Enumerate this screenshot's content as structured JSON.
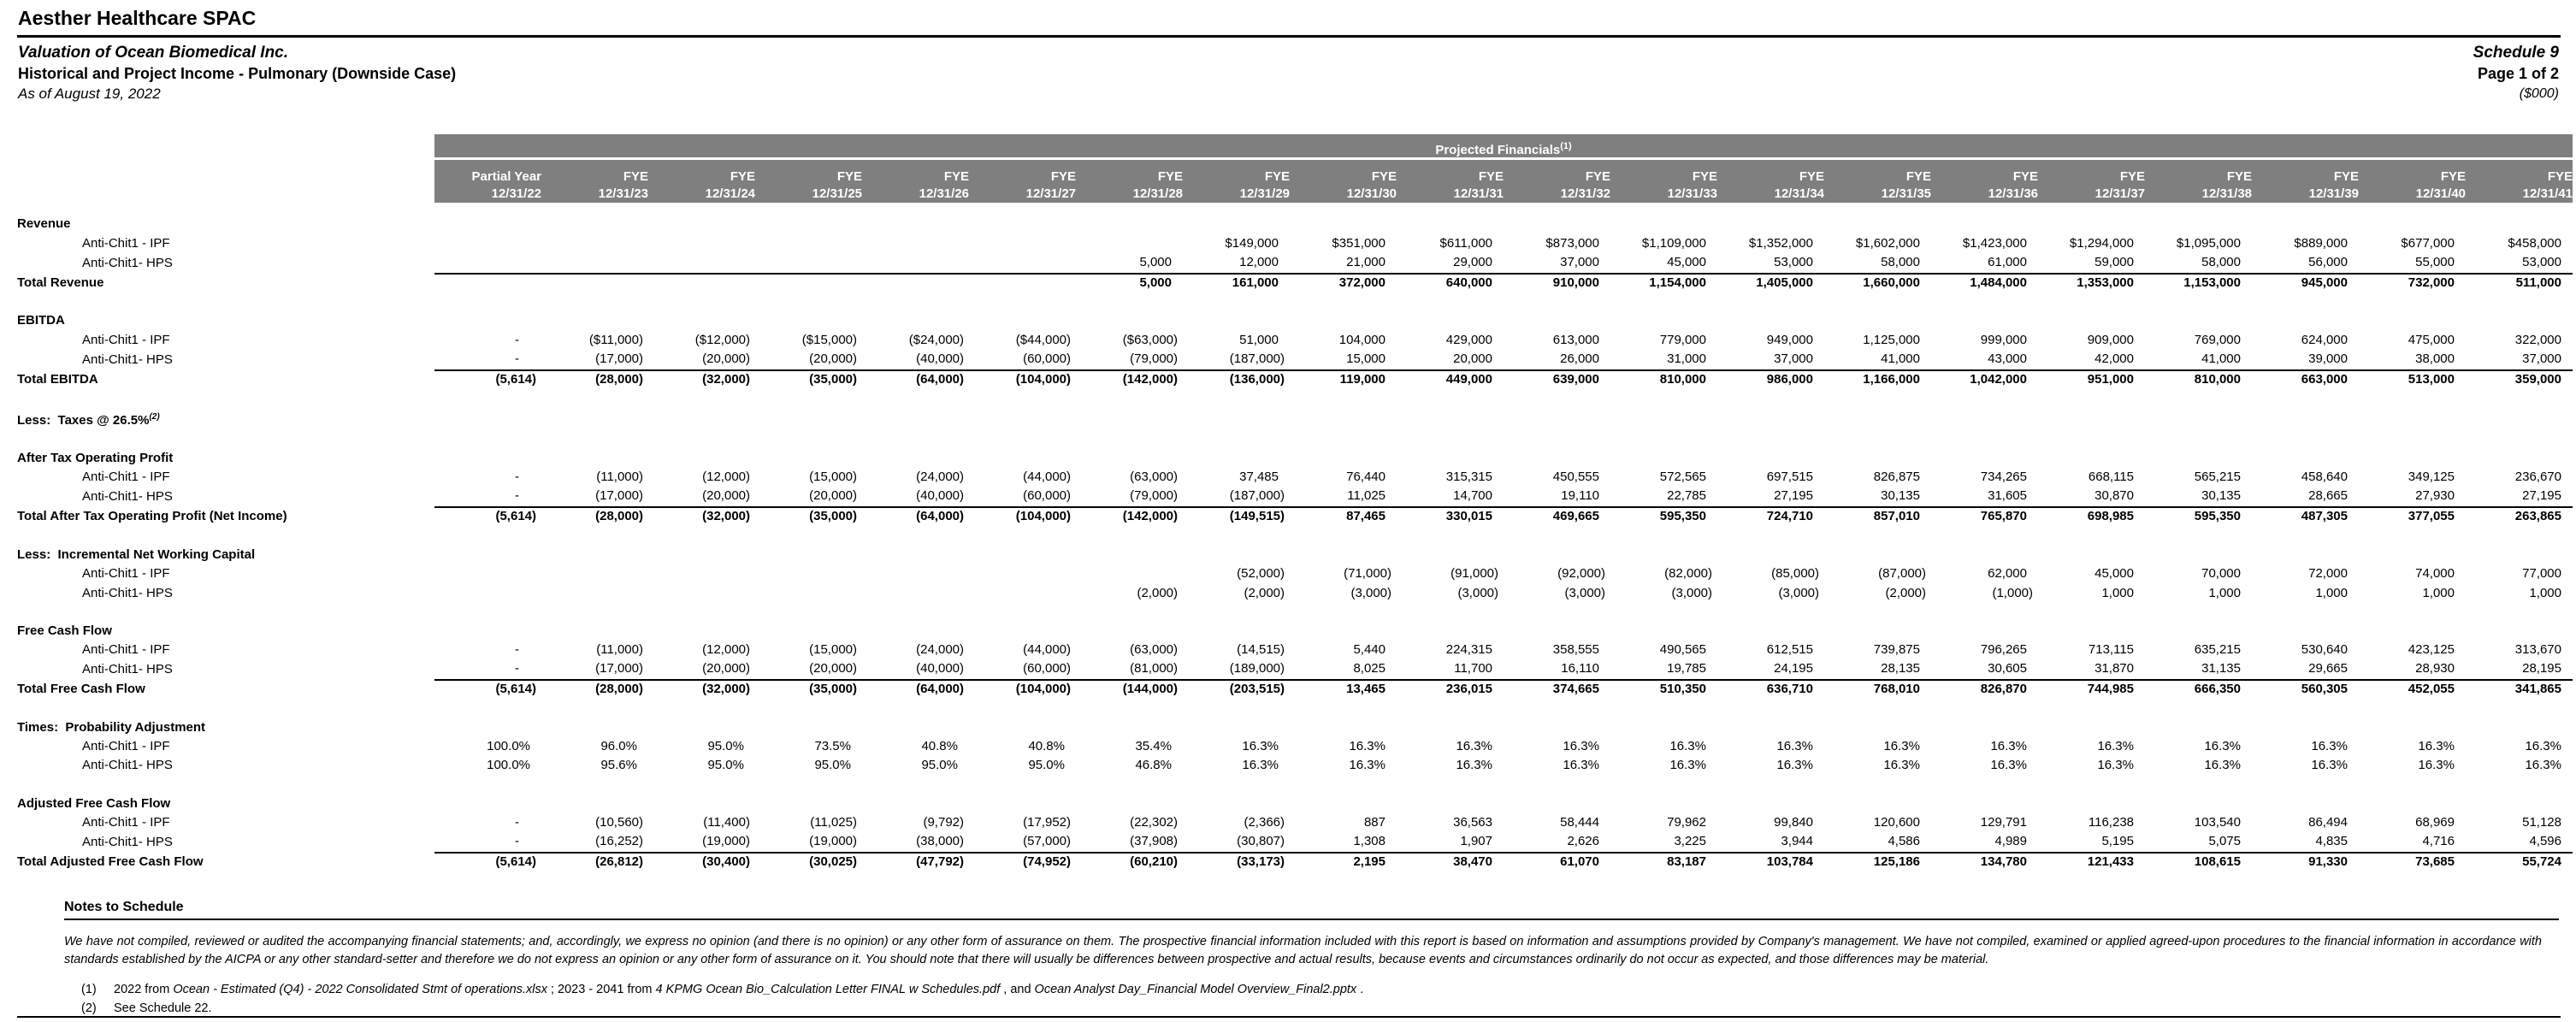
{
  "meta": {
    "company": "Aesther Healthcare SPAC",
    "subtitle1": "Valuation of Ocean Biomedical Inc.",
    "subtitle2": "Historical and Project Income - Pulmonary (Downside Case)",
    "as_of": "As of August 19, 2022",
    "schedule": "Schedule 9",
    "page": "Page 1 of 2",
    "units": "($000)"
  },
  "table": {
    "band_title": "Projected Financials",
    "band_sup": "(1)",
    "columns": [
      {
        "period": "Partial Year",
        "date": "12/31/22"
      },
      {
        "period": "FYE",
        "date": "12/31/23"
      },
      {
        "period": "FYE",
        "date": "12/31/24"
      },
      {
        "period": "FYE",
        "date": "12/31/25"
      },
      {
        "period": "FYE",
        "date": "12/31/26"
      },
      {
        "period": "FYE",
        "date": "12/31/27"
      },
      {
        "period": "FYE",
        "date": "12/31/28"
      },
      {
        "period": "FYE",
        "date": "12/31/29"
      },
      {
        "period": "FYE",
        "date": "12/31/30"
      },
      {
        "period": "FYE",
        "date": "12/31/31"
      },
      {
        "period": "FYE",
        "date": "12/31/32"
      },
      {
        "period": "FYE",
        "date": "12/31/33"
      },
      {
        "period": "FYE",
        "date": "12/31/34"
      },
      {
        "period": "FYE",
        "date": "12/31/35"
      },
      {
        "period": "FYE",
        "date": "12/31/36"
      },
      {
        "period": "FYE",
        "date": "12/31/37"
      },
      {
        "period": "FYE",
        "date": "12/31/38"
      },
      {
        "period": "FYE",
        "date": "12/31/39"
      },
      {
        "period": "FYE",
        "date": "12/31/40"
      },
      {
        "period": "FYE",
        "date": "12/31/41"
      }
    ],
    "rows": [
      {
        "type": "section",
        "label": "Revenue"
      },
      {
        "type": "item",
        "label": "Anti-Chit1 - IPF",
        "values": [
          "",
          "",
          "",
          "",
          "",
          "",
          "",
          "$149,000",
          "$351,000",
          "$611,000",
          "$873,000",
          "$1,109,000",
          "$1,352,000",
          "$1,602,000",
          "$1,423,000",
          "$1,294,000",
          "$1,095,000",
          "$889,000",
          "$677,000",
          "$458,000"
        ]
      },
      {
        "type": "item",
        "rule": true,
        "label": "Anti-Chit1- HPS",
        "values": [
          "",
          "",
          "",
          "",
          "",
          "",
          "5,000",
          "12,000",
          "21,000",
          "29,000",
          "37,000",
          "45,000",
          "53,000",
          "58,000",
          "61,000",
          "59,000",
          "58,000",
          "56,000",
          "55,000",
          "53,000"
        ]
      },
      {
        "type": "total",
        "label": "Total Revenue",
        "values": [
          "",
          "",
          "",
          "",
          "",
          "",
          "5,000",
          "161,000",
          "372,000",
          "640,000",
          "910,000",
          "1,154,000",
          "1,405,000",
          "1,660,000",
          "1,484,000",
          "1,353,000",
          "1,153,000",
          "945,000",
          "732,000",
          "511,000"
        ]
      },
      {
        "type": "spacer"
      },
      {
        "type": "section",
        "label": "EBITDA"
      },
      {
        "type": "item",
        "label": "Anti-Chit1 - IPF",
        "values": [
          "-",
          "($11,000)",
          "($12,000)",
          "($15,000)",
          "($24,000)",
          "($44,000)",
          "($63,000)",
          "51,000",
          "104,000",
          "429,000",
          "613,000",
          "779,000",
          "949,000",
          "1,125,000",
          "999,000",
          "909,000",
          "769,000",
          "624,000",
          "475,000",
          "322,000"
        ]
      },
      {
        "type": "item",
        "rule": true,
        "label": "Anti-Chit1- HPS",
        "values": [
          "-",
          "(17,000)",
          "(20,000)",
          "(20,000)",
          "(40,000)",
          "(60,000)",
          "(79,000)",
          "(187,000)",
          "15,000",
          "20,000",
          "26,000",
          "31,000",
          "37,000",
          "41,000",
          "43,000",
          "42,000",
          "41,000",
          "39,000",
          "38,000",
          "37,000"
        ]
      },
      {
        "type": "total",
        "label": "Total EBITDA",
        "values": [
          "(5,614)",
          "(28,000)",
          "(32,000)",
          "(35,000)",
          "(64,000)",
          "(104,000)",
          "(142,000)",
          "(136,000)",
          "119,000",
          "449,000",
          "639,000",
          "810,000",
          "986,000",
          "1,166,000",
          "1,042,000",
          "951,000",
          "810,000",
          "663,000",
          "513,000",
          "359,000"
        ]
      },
      {
        "type": "spacer"
      },
      {
        "type": "section",
        "label": "Less:  Taxes @ 26.5%",
        "sup": "(2)"
      },
      {
        "type": "spacer"
      },
      {
        "type": "section",
        "label": "After Tax Operating Profit"
      },
      {
        "type": "item",
        "label": "Anti-Chit1 - IPF",
        "values": [
          "-",
          "(11,000)",
          "(12,000)",
          "(15,000)",
          "(24,000)",
          "(44,000)",
          "(63,000)",
          "37,485",
          "76,440",
          "315,315",
          "450,555",
          "572,565",
          "697,515",
          "826,875",
          "734,265",
          "668,115",
          "565,215",
          "458,640",
          "349,125",
          "236,670"
        ]
      },
      {
        "type": "item",
        "rule": true,
        "label": "Anti-Chit1- HPS",
        "values": [
          "-",
          "(17,000)",
          "(20,000)",
          "(20,000)",
          "(40,000)",
          "(60,000)",
          "(79,000)",
          "(187,000)",
          "11,025",
          "14,700",
          "19,110",
          "22,785",
          "27,195",
          "30,135",
          "31,605",
          "30,870",
          "30,135",
          "28,665",
          "27,930",
          "27,195"
        ]
      },
      {
        "type": "total",
        "label": "Total After Tax Operating Profit (Net Income)",
        "values": [
          "(5,614)",
          "(28,000)",
          "(32,000)",
          "(35,000)",
          "(64,000)",
          "(104,000)",
          "(142,000)",
          "(149,515)",
          "87,465",
          "330,015",
          "469,665",
          "595,350",
          "724,710",
          "857,010",
          "765,870",
          "698,985",
          "595,350",
          "487,305",
          "377,055",
          "263,865"
        ]
      },
      {
        "type": "spacer"
      },
      {
        "type": "section",
        "label": "Less:  Incremental Net Working Capital"
      },
      {
        "type": "item",
        "label": "Anti-Chit1 - IPF",
        "values": [
          "",
          "",
          "",
          "",
          "",
          "",
          "",
          "(52,000)",
          "(71,000)",
          "(91,000)",
          "(92,000)",
          "(82,000)",
          "(85,000)",
          "(87,000)",
          "62,000",
          "45,000",
          "70,000",
          "72,000",
          "74,000",
          "77,000"
        ]
      },
      {
        "type": "item",
        "label": "Anti-Chit1- HPS",
        "values": [
          "",
          "",
          "",
          "",
          "",
          "",
          "(2,000)",
          "(2,000)",
          "(3,000)",
          "(3,000)",
          "(3,000)",
          "(3,000)",
          "(3,000)",
          "(2,000)",
          "(1,000)",
          "1,000",
          "1,000",
          "1,000",
          "1,000",
          "1,000"
        ]
      },
      {
        "type": "spacer"
      },
      {
        "type": "section",
        "label": "Free Cash Flow"
      },
      {
        "type": "item",
        "label": "Anti-Chit1 - IPF",
        "values": [
          "-",
          "(11,000)",
          "(12,000)",
          "(15,000)",
          "(24,000)",
          "(44,000)",
          "(63,000)",
          "(14,515)",
          "5,440",
          "224,315",
          "358,555",
          "490,565",
          "612,515",
          "739,875",
          "796,265",
          "713,115",
          "635,215",
          "530,640",
          "423,125",
          "313,670"
        ]
      },
      {
        "type": "item",
        "rule": true,
        "label": "Anti-Chit1- HPS",
        "values": [
          "-",
          "(17,000)",
          "(20,000)",
          "(20,000)",
          "(40,000)",
          "(60,000)",
          "(81,000)",
          "(189,000)",
          "8,025",
          "11,700",
          "16,110",
          "19,785",
          "24,195",
          "28,135",
          "30,605",
          "31,870",
          "31,135",
          "29,665",
          "28,930",
          "28,195"
        ]
      },
      {
        "type": "total",
        "label": "Total Free Cash Flow",
        "values": [
          "(5,614)",
          "(28,000)",
          "(32,000)",
          "(35,000)",
          "(64,000)",
          "(104,000)",
          "(144,000)",
          "(203,515)",
          "13,465",
          "236,015",
          "374,665",
          "510,350",
          "636,710",
          "768,010",
          "826,870",
          "744,985",
          "666,350",
          "560,305",
          "452,055",
          "341,865"
        ]
      },
      {
        "type": "spacer"
      },
      {
        "type": "section",
        "label": "Times:  Probability Adjustment"
      },
      {
        "type": "item",
        "label": "Anti-Chit1 - IPF",
        "values": [
          "100.0%",
          "96.0%",
          "95.0%",
          "73.5%",
          "40.8%",
          "40.8%",
          "35.4%",
          "16.3%",
          "16.3%",
          "16.3%",
          "16.3%",
          "16.3%",
          "16.3%",
          "16.3%",
          "16.3%",
          "16.3%",
          "16.3%",
          "16.3%",
          "16.3%",
          "16.3%"
        ]
      },
      {
        "type": "item",
        "label": "Anti-Chit1- HPS",
        "values": [
          "100.0%",
          "95.6%",
          "95.0%",
          "95.0%",
          "95.0%",
          "95.0%",
          "46.8%",
          "16.3%",
          "16.3%",
          "16.3%",
          "16.3%",
          "16.3%",
          "16.3%",
          "16.3%",
          "16.3%",
          "16.3%",
          "16.3%",
          "16.3%",
          "16.3%",
          "16.3%"
        ]
      },
      {
        "type": "spacer"
      },
      {
        "type": "section",
        "label": "Adjusted Free Cash Flow"
      },
      {
        "type": "item",
        "label": "Anti-Chit1 - IPF",
        "values": [
          "-",
          "(10,560)",
          "(11,400)",
          "(11,025)",
          "(9,792)",
          "(17,952)",
          "(22,302)",
          "(2,366)",
          "887",
          "36,563",
          "58,444",
          "79,962",
          "99,840",
          "120,600",
          "129,791",
          "116,238",
          "103,540",
          "86,494",
          "68,969",
          "51,128"
        ]
      },
      {
        "type": "item",
        "rule": true,
        "label": "Anti-Chit1- HPS",
        "values": [
          "-",
          "(16,252)",
          "(19,000)",
          "(19,000)",
          "(38,000)",
          "(57,000)",
          "(37,908)",
          "(30,807)",
          "1,308",
          "1,907",
          "2,626",
          "3,225",
          "3,944",
          "4,586",
          "4,989",
          "5,195",
          "5,075",
          "4,835",
          "4,716",
          "4,596"
        ]
      },
      {
        "type": "total",
        "label": "Total Adjusted Free Cash Flow",
        "values": [
          "(5,614)",
          "(26,812)",
          "(30,400)",
          "(30,025)",
          "(47,792)",
          "(74,952)",
          "(60,210)",
          "(33,173)",
          "2,195",
          "38,470",
          "61,070",
          "83,187",
          "103,784",
          "125,186",
          "134,780",
          "121,433",
          "108,615",
          "91,330",
          "73,685",
          "55,724"
        ]
      }
    ]
  },
  "notes": {
    "heading": "Notes to Schedule",
    "paragraph": "We have not compiled, reviewed or audited the accompanying financial statements; and, accordingly, we express no opinion (and there is no opinion) or any other form of assurance on them.  The prospective financial information included with this report is based on information and assumptions provided by Company's management.  We have not compiled, examined or applied agreed-upon procedures to the financial information in accordance with standards established by the AICPA or any other standard-setter and therefore we do not express an opinion or any other form of assurance on it.  You should note that there will usually be differences between prospective and actual results, because events and circumstances ordinarily do not occur as expected, and those differences may be material.",
    "footnotes": [
      {
        "num": "(1)",
        "parts": [
          {
            "t": "2022 from ",
            "i": false
          },
          {
            "t": "Ocean - Estimated (Q4) - 2022 Consolidated Stmt of operations.xlsx",
            "i": true
          },
          {
            "t": " ; 2023 - 2041 from ",
            "i": false
          },
          {
            "t": "4 KPMG Ocean Bio_Calculation Letter FINAL w Schedules.pdf",
            "i": true
          },
          {
            "t": " , and ",
            "i": false
          },
          {
            "t": "Ocean Analyst Day_Financial Model Overview_Final2.pptx",
            "i": true
          },
          {
            "t": " .",
            "i": false
          }
        ]
      },
      {
        "num": "(2)",
        "parts": [
          {
            "t": "See Schedule 22.",
            "i": false
          }
        ]
      }
    ]
  }
}
